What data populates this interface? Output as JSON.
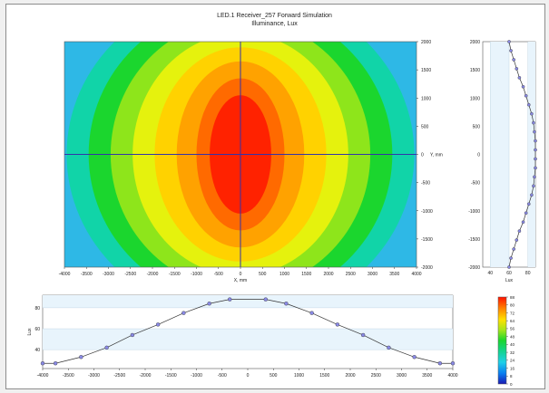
{
  "header": {
    "title": "LED.1 Receiver_257 Forward Simulation",
    "subtitle": "Illuminance, Lux"
  },
  "colors": {
    "background": "#ffffff",
    "axis_line": "#3333aa",
    "profile_point": "#8a8ae6",
    "band_light": "#e8f4fc",
    "contour_levels": [
      "#2eb8e6",
      "#11d4a8",
      "#1bd62e",
      "#8ee51b",
      "#e5f20d",
      "#ffd200",
      "#ffa200",
      "#ff6a00",
      "#ff2200"
    ]
  },
  "chart_data": [
    {
      "type": "heatmap",
      "name": "illuminance-map",
      "title": "",
      "xlabel": "X, mm",
      "ylabel": "Y, mm",
      "xlim": [
        -4000,
        4000
      ],
      "ylim": [
        -2000,
        2000
      ],
      "x_ticks": [
        -4000,
        -3500,
        -3000,
        -2500,
        -2000,
        -1500,
        -1000,
        -500,
        0,
        500,
        1000,
        1500,
        2000,
        2500,
        3000,
        3500,
        4000
      ],
      "y_ticks": [
        2000,
        1500,
        1000,
        500,
        0,
        -500,
        -1000,
        -1500,
        -2000
      ],
      "peak_lux": 88,
      "peak_at": [
        0,
        0
      ]
    },
    {
      "type": "line",
      "name": "vertical-profile",
      "xlabel": "Lux",
      "x_ticks": [
        40,
        60,
        80
      ],
      "xlim": [
        32,
        88
      ],
      "ylim": [
        -2000,
        2000
      ],
      "y": [
        2000,
        1840,
        1680,
        1520,
        1360,
        1200,
        1040,
        880,
        720,
        560,
        400,
        240,
        80,
        -80,
        -240,
        -400,
        -560,
        -720,
        -880,
        -1040,
        -1200,
        -1360,
        -1520,
        -1680,
        -1840,
        -2000
      ],
      "x": [
        60,
        62,
        65,
        68,
        71,
        75,
        78,
        81,
        84,
        86,
        87,
        88,
        88,
        88,
        88,
        87,
        86,
        84,
        81,
        78,
        75,
        71,
        68,
        65,
        62,
        60
      ]
    },
    {
      "type": "line",
      "name": "horizontal-profile",
      "ylabel": "Lux",
      "y_ticks": [
        40,
        60,
        80
      ],
      "ylim": [
        22,
        92
      ],
      "x_ticks": [
        -4000,
        -3500,
        -3000,
        -2500,
        -2000,
        -1500,
        -1000,
        -500,
        0,
        500,
        1000,
        1500,
        2000,
        2500,
        3000,
        3500,
        4000
      ],
      "x": [
        -4000,
        -3750,
        -3250,
        -2750,
        -2250,
        -1750,
        -1250,
        -750,
        -350,
        350,
        750,
        1250,
        1750,
        2250,
        2750,
        3250,
        3750,
        4000
      ],
      "y": [
        27,
        27,
        33,
        42,
        54,
        64,
        75,
        84,
        88,
        88,
        84,
        75,
        64,
        54,
        42,
        33,
        27,
        27
      ]
    },
    {
      "type": "colorbar",
      "name": "lux-scale",
      "range": [
        0,
        88
      ],
      "ticks": [
        0,
        8,
        16,
        24,
        32,
        40,
        48,
        56,
        64,
        72,
        80,
        88
      ]
    }
  ]
}
